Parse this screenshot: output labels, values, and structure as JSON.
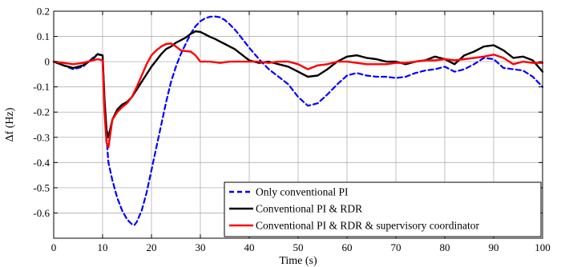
{
  "chart_data": {
    "type": "line",
    "xlabel": "Time (s)",
    "ylabel": "Δf (Hz)",
    "xlim": [
      0,
      100
    ],
    "ylim": [
      -0.7,
      0.2
    ],
    "xticks": [
      0,
      10,
      20,
      30,
      40,
      50,
      60,
      70,
      80,
      90,
      100
    ],
    "yticks": [
      0.2,
      0.1,
      0,
      -0.1,
      -0.2,
      -0.3,
      -0.4,
      -0.5,
      -0.6
    ],
    "xtick_labels": [
      "0",
      "10",
      "20",
      "30",
      "40",
      "50",
      "60",
      "70",
      "80",
      "90",
      "100"
    ],
    "ytick_labels": [
      "0.2",
      "0.1",
      "0",
      "-0.1",
      "-0.2",
      "-0.3",
      "-0.4",
      "-0.5",
      "-0.6"
    ],
    "grid": true,
    "legend_position": "bottom-right",
    "series": [
      {
        "name": "Only conventional PI",
        "color": "#0000ff",
        "style": "dashed",
        "x": [
          0,
          2,
          4,
          6,
          8,
          9,
          10,
          10.4,
          10.8,
          11.2,
          12,
          13,
          14,
          15,
          16,
          16.5,
          17,
          18,
          19,
          20,
          21,
          22,
          23,
          24,
          25,
          26,
          27,
          28,
          29,
          30,
          31,
          32,
          33,
          34,
          35,
          36,
          37,
          38,
          39,
          40,
          42,
          44,
          46,
          48,
          50,
          52,
          54,
          56,
          58,
          60,
          62,
          64,
          66,
          68,
          70,
          72,
          74,
          76,
          78,
          80,
          82,
          84,
          86,
          88,
          90,
          92,
          94,
          96,
          98,
          100
        ],
        "y": [
          0,
          -0.015,
          -0.03,
          -0.02,
          0.015,
          0.03,
          0.02,
          -0.15,
          -0.3,
          -0.4,
          -0.47,
          -0.54,
          -0.59,
          -0.625,
          -0.645,
          -0.648,
          -0.635,
          -0.59,
          -0.52,
          -0.43,
          -0.34,
          -0.25,
          -0.16,
          -0.08,
          -0.02,
          0.03,
          0.07,
          0.11,
          0.14,
          0.16,
          0.172,
          0.178,
          0.179,
          0.176,
          0.165,
          0.148,
          0.128,
          0.105,
          0.08,
          0.055,
          0.01,
          -0.03,
          -0.06,
          -0.09,
          -0.14,
          -0.175,
          -0.165,
          -0.13,
          -0.09,
          -0.055,
          -0.045,
          -0.055,
          -0.06,
          -0.06,
          -0.065,
          -0.06,
          -0.045,
          -0.035,
          -0.03,
          -0.02,
          -0.04,
          -0.03,
          -0.01,
          0.015,
          0.01,
          -0.025,
          -0.03,
          -0.035,
          -0.06,
          -0.1
        ]
      },
      {
        "name": "Conventional PI & RDR",
        "color": "#000000",
        "style": "solid",
        "x": [
          0,
          2,
          4,
          6,
          8,
          9,
          10,
          10.4,
          10.8,
          11.2,
          12,
          13,
          14,
          15,
          16,
          17,
          18,
          19,
          20,
          21,
          22,
          23,
          24,
          25,
          26,
          27,
          28,
          29,
          30,
          31,
          32,
          33,
          34,
          35,
          36,
          37,
          38,
          39,
          40,
          42,
          44,
          46,
          48,
          50,
          52,
          54,
          56,
          58,
          60,
          62,
          64,
          66,
          68,
          70,
          72,
          74,
          76,
          78,
          80,
          82,
          84,
          86,
          88,
          90,
          92,
          94,
          96,
          98,
          100
        ],
        "y": [
          0,
          -0.015,
          -0.025,
          -0.015,
          0.01,
          0.03,
          0.025,
          -0.15,
          -0.27,
          -0.3,
          -0.23,
          -0.19,
          -0.17,
          -0.16,
          -0.14,
          -0.11,
          -0.08,
          -0.05,
          -0.02,
          0.005,
          0.03,
          0.05,
          0.06,
          0.075,
          0.085,
          0.095,
          0.11,
          0.12,
          0.118,
          0.108,
          0.098,
          0.09,
          0.08,
          0.07,
          0.06,
          0.05,
          0.035,
          0.02,
          0.005,
          -0.005,
          0,
          -0.01,
          -0.02,
          -0.04,
          -0.06,
          -0.055,
          -0.03,
          0,
          0.02,
          0.025,
          0.015,
          0.01,
          0.0,
          0,
          -0.01,
          0,
          0.005,
          0.02,
          0.01,
          -0.01,
          0.025,
          0.04,
          0.06,
          0.065,
          0.045,
          0.015,
          0.02,
          0.005,
          -0.04
        ]
      },
      {
        "name": "Conventional PI & RDR & supervisory coordinator",
        "color": "#ff0000",
        "style": "solid",
        "x": [
          0,
          2,
          4,
          6,
          8,
          9,
          10,
          10.4,
          10.8,
          11.2,
          12,
          13,
          14,
          15,
          16,
          17,
          18,
          19,
          20,
          21,
          22,
          23,
          24,
          25,
          26,
          27,
          28,
          29,
          30,
          32,
          34,
          36,
          38,
          40,
          42,
          44,
          46,
          48,
          50,
          52,
          54,
          56,
          58,
          60,
          62,
          64,
          66,
          68,
          70,
          72,
          74,
          76,
          78,
          80,
          82,
          84,
          86,
          88,
          90,
          92,
          94,
          96,
          98,
          100
        ],
        "y": [
          0,
          -0.005,
          -0.01,
          -0.005,
          0.005,
          0.01,
          0.005,
          -0.2,
          -0.32,
          -0.34,
          -0.23,
          -0.2,
          -0.18,
          -0.165,
          -0.14,
          -0.1,
          -0.055,
          -0.01,
          0.025,
          0.045,
          0.06,
          0.07,
          0.072,
          0.06,
          0.045,
          0.042,
          0.04,
          0.025,
          0,
          0.0,
          -0.005,
          0.0,
          0.0,
          0.0,
          0.0,
          -0.005,
          0.0,
          0.0,
          -0.01,
          -0.03,
          -0.015,
          -0.01,
          0.0,
          0.0,
          -0.005,
          -0.01,
          -0.01,
          -0.01,
          -0.005,
          -0.005,
          0.0,
          0.005,
          0.005,
          0.01,
          0.005,
          0.01,
          0.015,
          0.02,
          0.028,
          0.015,
          -0.01,
          0.0,
          -0.005,
          -0.005
        ]
      }
    ]
  }
}
